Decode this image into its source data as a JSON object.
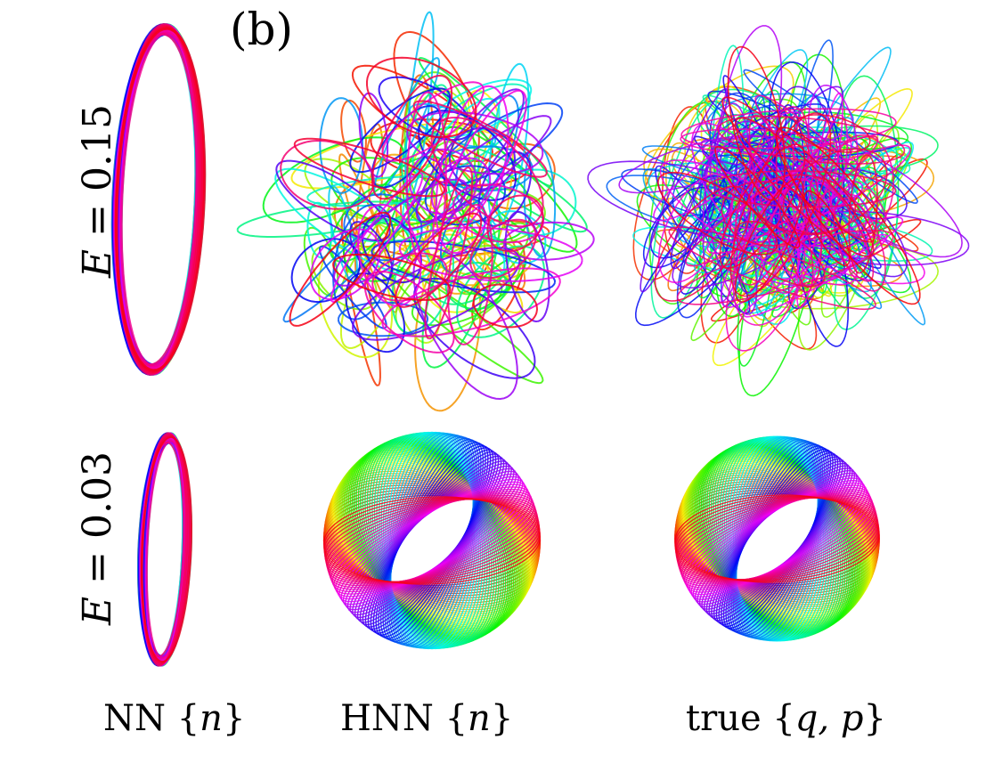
{
  "figure": {
    "panel_label": "(b)",
    "rows": [
      {
        "var": "E",
        "eq": " = ",
        "value": "0.15"
      },
      {
        "var": "E",
        "eq": " = ",
        "value": "0.03"
      }
    ],
    "columns": [
      {
        "prefix": "NN {",
        "var": "n",
        "suffix": "}"
      },
      {
        "prefix": "HNN {",
        "var": "n",
        "suffix": "}"
      },
      {
        "prefix": "true {",
        "var": "q, p",
        "suffix": "}"
      }
    ],
    "plots": [
      {
        "name": "nn-e015",
        "shape": "ring"
      },
      {
        "name": "hnn-e015",
        "shape": "tangle"
      },
      {
        "name": "true-e015",
        "shape": "dense"
      },
      {
        "name": "nn-e003",
        "shape": "ring"
      },
      {
        "name": "hnn-e003",
        "shape": "torus"
      },
      {
        "name": "true-e003",
        "shape": "torus"
      }
    ]
  }
}
